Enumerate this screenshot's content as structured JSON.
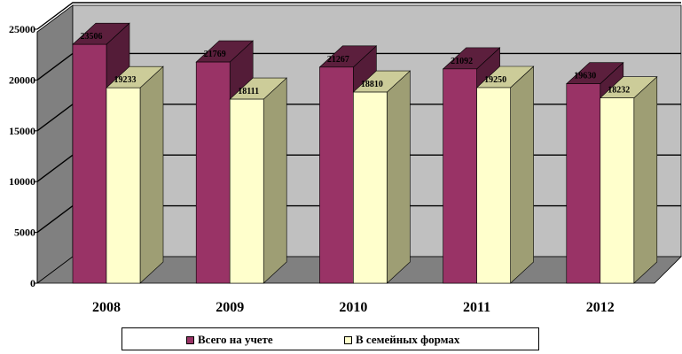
{
  "chart_data": {
    "type": "bar",
    "categories": [
      "2008",
      "2009",
      "2010",
      "2011",
      "2012"
    ],
    "series": [
      {
        "name": "Всего на учете",
        "color": "#993366",
        "values": [
          23506,
          21769,
          21267,
          21092,
          19630
        ]
      },
      {
        "name": "В семейных формах",
        "color": "#FFFFCC",
        "values": [
          19233,
          18111,
          18810,
          19250,
          18232
        ]
      }
    ],
    "data_labels": [
      [
        "23506",
        "21769",
        "21267",
        "21092",
        "19630"
      ],
      [
        "19233",
        "18111",
        "18810",
        "19250",
        "18232"
      ]
    ],
    "yticks": [
      "0",
      "5000",
      "10000",
      "15000",
      "20000",
      "25000"
    ],
    "ylim": [
      0,
      25000
    ],
    "grid": true,
    "legend_position": "bottom",
    "style": "3d-column",
    "wall_color": "#C0C0C0",
    "floor_color": "#808080"
  }
}
